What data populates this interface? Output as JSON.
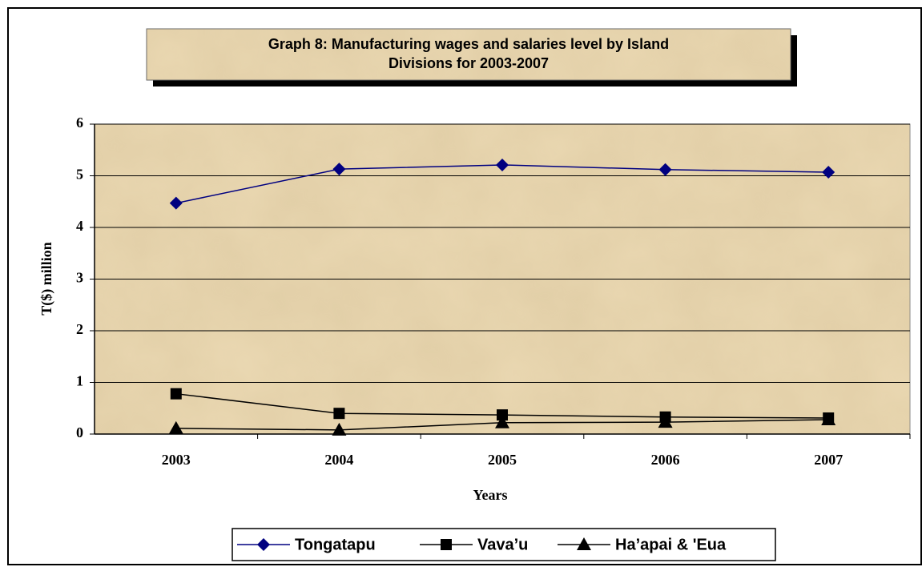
{
  "chart_data": {
    "type": "line",
    "title": "Graph 8: Manufacturing wages and salaries level by Island Divisions for 2003-2007",
    "title_lines": [
      "Graph 8: Manufacturing wages and salaries level by Island",
      "Divisions for 2003-2007"
    ],
    "x_label": "Years",
    "y_label": "T($) million",
    "categories": [
      "2003",
      "2004",
      "2005",
      "2006",
      "2007"
    ],
    "series": [
      {
        "name": "Tongatapu",
        "color": "#000080",
        "marker": "diamond",
        "values": [
          4.47,
          5.13,
          5.21,
          5.12,
          5.07
        ]
      },
      {
        "name": "Vava’u",
        "color": "#000000",
        "marker": "square",
        "values": [
          0.78,
          0.4,
          0.37,
          0.33,
          0.31
        ]
      },
      {
        "name": "Ha’apai & 'Eua",
        "color": "#000000",
        "marker": "triangle",
        "values": [
          0.11,
          0.08,
          0.22,
          0.23,
          0.28
        ]
      }
    ],
    "ylim": [
      0,
      6
    ],
    "yticks": [
      0,
      1,
      2,
      3,
      4,
      5,
      6
    ],
    "grid": true,
    "legend": "bottom"
  }
}
